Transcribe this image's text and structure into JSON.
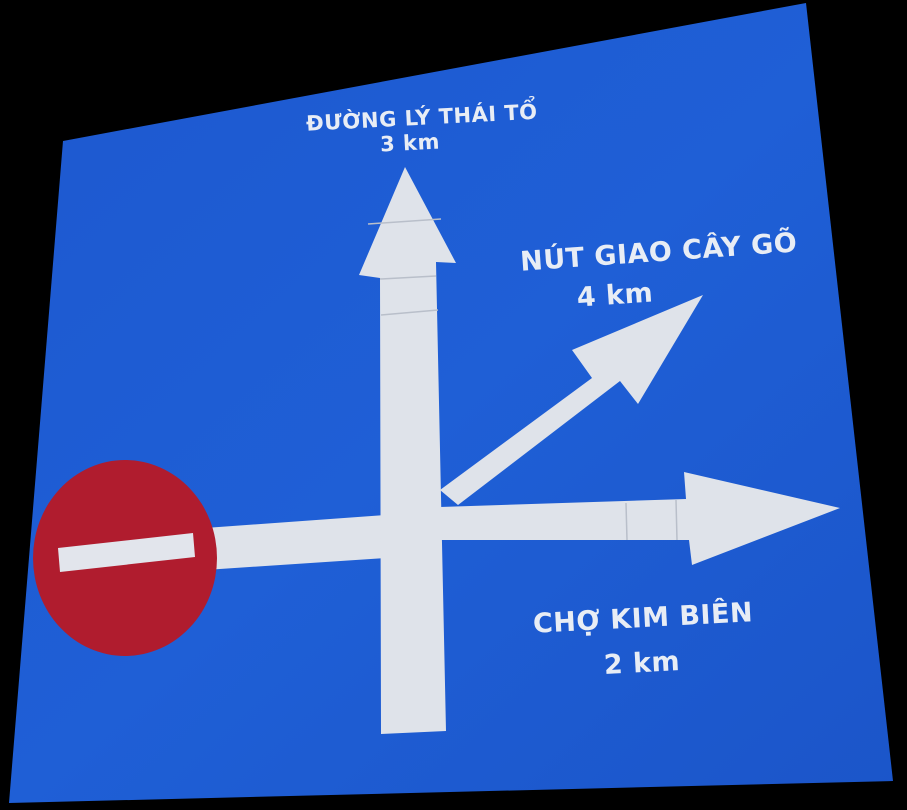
{
  "sign": {
    "background_color": "#1f5fd6",
    "arrow_color": "#dfe3ea",
    "no_entry_color": "#b01c2e",
    "directions": {
      "north": {
        "name": "ĐƯỜNG LÝ THÁI TỔ",
        "distance": "3 km"
      },
      "northeast": {
        "name": "NÚT GIAO CÂY GÕ",
        "distance": "4 km"
      },
      "east": {
        "name": "CHỢ KIM BIÊN",
        "distance": "2 km"
      }
    },
    "west_symbol": "no-entry-icon"
  }
}
